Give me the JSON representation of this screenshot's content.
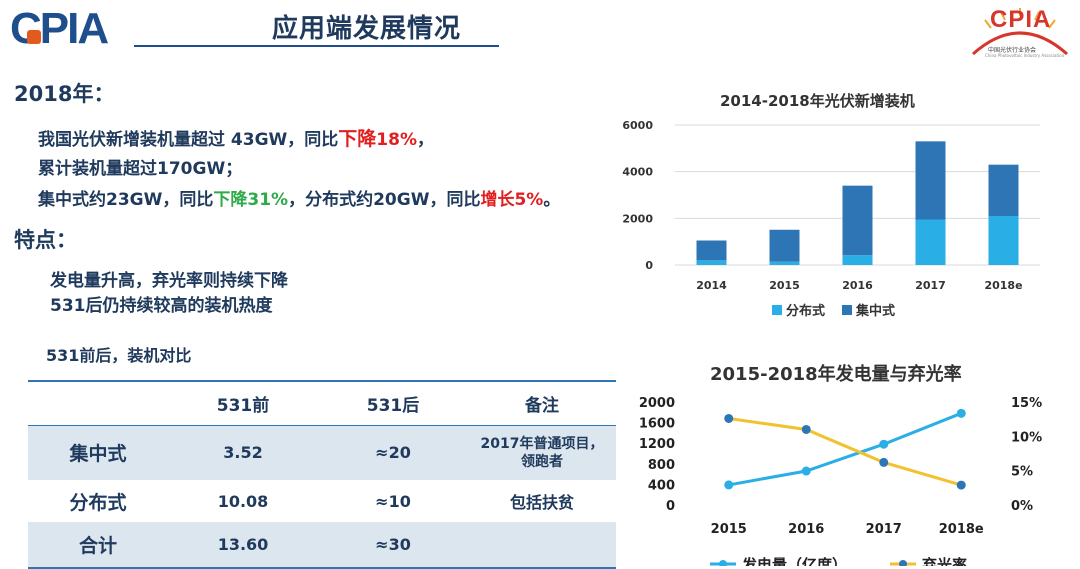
{
  "header": {
    "logo": "CPIA",
    "title": "应用端发展情况",
    "brand": "CPIA",
    "brand_sub": "中国光伏行业协会",
    "brand_sub_en": "China Photovoltaic Industry Association"
  },
  "section_2018": {
    "heading": "2018年：",
    "line1": {
      "a": "我国光伏新增装机量超过 43GW，同比",
      "b": "下降",
      "c": "18%",
      "d": "，"
    },
    "line2": "累计装机量超过170GW；",
    "line3": {
      "a": "集中式约23GW，同比",
      "b": "下降31%",
      "c": "，分布式约20GW，同比",
      "d": "增长5%",
      "e": "。"
    }
  },
  "features": {
    "heading": "特点：",
    "line1": "发电量升高，弃光率则持续下降",
    "line2": "531后仍持续较高的装机热度"
  },
  "table_caption": "531前后，装机对比",
  "table": {
    "headers": [
      "",
      "531前",
      "531后",
      "备注"
    ],
    "rows": [
      [
        "集中式",
        "3.52",
        "≈20",
        "2017年普通项目，领跑者"
      ],
      [
        "分布式",
        "10.08",
        "≈10",
        "包括扶贫"
      ],
      [
        "合计",
        "13.60",
        "≈30",
        ""
      ]
    ]
  },
  "chart_data": [
    {
      "type": "bar",
      "stacked": true,
      "title": "2014-2018年光伏新增装机",
      "categories": [
        "2014",
        "2015",
        "2016",
        "2017",
        "2018e"
      ],
      "series": [
        {
          "name": "分布式",
          "values": [
            200,
            140,
            420,
            1950,
            2100
          ],
          "color": "#29aee6"
        },
        {
          "name": "集中式",
          "values": [
            850,
            1370,
            2980,
            3350,
            2200
          ],
          "color": "#2e75b6"
        }
      ],
      "ylim": [
        0,
        6000
      ],
      "yticks": [
        "0",
        "2000",
        "4000",
        "6000"
      ],
      "grid": true,
      "legend": "bottom"
    },
    {
      "type": "line",
      "title": "2015-2018年发电量与弃光率",
      "categories": [
        "2015",
        "2016",
        "2017",
        "2018e"
      ],
      "series": [
        {
          "name": "发电量（亿度）",
          "values": [
            390,
            660,
            1180,
            1780
          ],
          "axis": "left",
          "color": "#29aee6"
        },
        {
          "name": "弃光率",
          "values": [
            12.6,
            11.0,
            6.2,
            2.9
          ],
          "axis": "right",
          "color": "#f2c12e"
        }
      ],
      "ylim_left": [
        0,
        2000
      ],
      "yticks_left": [
        "0",
        "400",
        "800",
        "1200",
        "1600",
        "2000"
      ],
      "ylim_right": [
        0,
        15
      ],
      "yticks_right": [
        "0%",
        "5%",
        "10%",
        "15%"
      ],
      "legend": "bottom"
    }
  ]
}
